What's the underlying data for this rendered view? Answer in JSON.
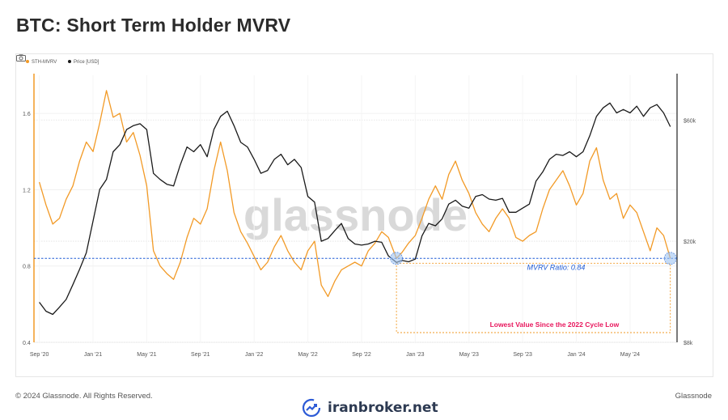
{
  "page": {
    "title": "BTC: Short Term Holder MVRV",
    "footer_left": "© 2024 Glassnode. All Rights Reserved.",
    "footer_right": "Glassnode",
    "watermark": "glassnode",
    "brand_text": "iranbroker.net"
  },
  "chart_data": {
    "type": "line",
    "title": "BTC: Short Term Holder MVRV",
    "legend_position": "top-left",
    "grid": true,
    "x_ticks": [
      "Sep '20",
      "Jan '21",
      "May '21",
      "Sep '21",
      "Jan '22",
      "May '22",
      "Sep '22",
      "Jan '23",
      "May '23",
      "Sep '23",
      "Jan '24",
      "May '24"
    ],
    "x_tick_months": [
      0,
      4,
      8,
      12,
      16,
      20,
      24,
      28,
      32,
      36,
      40,
      44
    ],
    "x_range_months": [
      -0.4,
      47.5
    ],
    "y_left": {
      "ticks": [
        "0.4",
        "0.8",
        "1.2",
        "1.6"
      ],
      "tick_values": [
        0.4,
        0.8,
        1.2,
        1.6
      ],
      "range": [
        0.4,
        1.8
      ]
    },
    "y_right": {
      "ticks": [
        "$8k",
        "$20k",
        "$60k"
      ],
      "tick_values": [
        8000,
        20000,
        60000
      ],
      "scale": "log",
      "range": [
        8000,
        90000
      ]
    },
    "reference_line": {
      "value": 0.84,
      "label": "MVRV Ratio: 0.84",
      "color": "#1f5bd6"
    },
    "annotation": {
      "text": "Lowest Value Since the 2022 Cycle Low",
      "color": "#e8175d"
    },
    "highlight_points": [
      {
        "month": 26.6,
        "value": 0.84
      },
      {
        "month": 47.0,
        "value": 0.84
      }
    ],
    "series": [
      {
        "name": "STH-MVRV",
        "axis": "left",
        "color": "#f29a26",
        "points": [
          [
            0,
            1.24
          ],
          [
            0.5,
            1.12
          ],
          [
            1,
            1.02
          ],
          [
            1.5,
            1.05
          ],
          [
            2,
            1.15
          ],
          [
            2.5,
            1.22
          ],
          [
            3,
            1.35
          ],
          [
            3.5,
            1.45
          ],
          [
            4,
            1.4
          ],
          [
            4.5,
            1.55
          ],
          [
            5,
            1.72
          ],
          [
            5.5,
            1.58
          ],
          [
            6,
            1.6
          ],
          [
            6.5,
            1.45
          ],
          [
            7,
            1.5
          ],
          [
            7.5,
            1.38
          ],
          [
            8,
            1.22
          ],
          [
            8.5,
            0.88
          ],
          [
            9,
            0.8
          ],
          [
            9.5,
            0.76
          ],
          [
            10,
            0.73
          ],
          [
            10.5,
            0.82
          ],
          [
            11,
            0.95
          ],
          [
            11.5,
            1.05
          ],
          [
            12,
            1.02
          ],
          [
            12.5,
            1.1
          ],
          [
            13,
            1.3
          ],
          [
            13.5,
            1.45
          ],
          [
            14,
            1.3
          ],
          [
            14.5,
            1.08
          ],
          [
            15,
            0.98
          ],
          [
            15.5,
            0.92
          ],
          [
            16,
            0.85
          ],
          [
            16.5,
            0.78
          ],
          [
            17,
            0.82
          ],
          [
            17.5,
            0.9
          ],
          [
            18,
            0.96
          ],
          [
            18.5,
            0.88
          ],
          [
            19,
            0.82
          ],
          [
            19.5,
            0.78
          ],
          [
            20,
            0.88
          ],
          [
            20.5,
            0.93
          ],
          [
            21,
            0.7
          ],
          [
            21.5,
            0.64
          ],
          [
            22,
            0.72
          ],
          [
            22.5,
            0.78
          ],
          [
            23,
            0.8
          ],
          [
            23.5,
            0.82
          ],
          [
            24,
            0.8
          ],
          [
            24.5,
            0.88
          ],
          [
            25,
            0.92
          ],
          [
            25.5,
            0.98
          ],
          [
            26,
            0.95
          ],
          [
            26.6,
            0.84
          ],
          [
            27,
            0.87
          ],
          [
            27.5,
            0.92
          ],
          [
            28,
            0.96
          ],
          [
            28.5,
            1.05
          ],
          [
            29,
            1.15
          ],
          [
            29.5,
            1.22
          ],
          [
            30,
            1.15
          ],
          [
            30.5,
            1.28
          ],
          [
            31,
            1.35
          ],
          [
            31.5,
            1.25
          ],
          [
            32,
            1.18
          ],
          [
            32.5,
            1.08
          ],
          [
            33,
            1.02
          ],
          [
            33.5,
            0.98
          ],
          [
            34,
            1.05
          ],
          [
            34.5,
            1.1
          ],
          [
            35,
            1.05
          ],
          [
            35.5,
            0.95
          ],
          [
            36,
            0.93
          ],
          [
            36.5,
            0.96
          ],
          [
            37,
            0.98
          ],
          [
            37.5,
            1.1
          ],
          [
            38,
            1.2
          ],
          [
            38.5,
            1.25
          ],
          [
            39,
            1.3
          ],
          [
            39.5,
            1.22
          ],
          [
            40,
            1.12
          ],
          [
            40.5,
            1.18
          ],
          [
            41,
            1.35
          ],
          [
            41.5,
            1.42
          ],
          [
            42,
            1.25
          ],
          [
            42.5,
            1.15
          ],
          [
            43,
            1.18
          ],
          [
            43.5,
            1.05
          ],
          [
            44,
            1.12
          ],
          [
            44.5,
            1.08
          ],
          [
            45,
            0.98
          ],
          [
            45.5,
            0.88
          ],
          [
            46,
            1.0
          ],
          [
            46.5,
            0.96
          ],
          [
            47,
            0.84
          ]
        ]
      },
      {
        "name": "Price [USD]",
        "axis": "right",
        "color": "#1a1a1a",
        "points": [
          [
            0,
            11500
          ],
          [
            0.5,
            10600
          ],
          [
            1,
            10300
          ],
          [
            1.5,
            11000
          ],
          [
            2,
            11800
          ],
          [
            2.5,
            13500
          ],
          [
            3,
            15500
          ],
          [
            3.5,
            18000
          ],
          [
            4,
            24000
          ],
          [
            4.5,
            32000
          ],
          [
            5,
            35000
          ],
          [
            5.5,
            45000
          ],
          [
            6,
            48000
          ],
          [
            6.5,
            55000
          ],
          [
            7,
            57000
          ],
          [
            7.5,
            58000
          ],
          [
            8,
            55000
          ],
          [
            8.5,
            37000
          ],
          [
            9,
            35000
          ],
          [
            9.5,
            33500
          ],
          [
            10,
            33000
          ],
          [
            10.5,
            40000
          ],
          [
            11,
            47000
          ],
          [
            11.5,
            45000
          ],
          [
            12,
            48000
          ],
          [
            12.5,
            43000
          ],
          [
            13,
            55000
          ],
          [
            13.5,
            62000
          ],
          [
            14,
            65000
          ],
          [
            14.5,
            57000
          ],
          [
            15,
            49000
          ],
          [
            15.5,
            47000
          ],
          [
            16,
            42000
          ],
          [
            16.5,
            37000
          ],
          [
            17,
            38000
          ],
          [
            17.5,
            42000
          ],
          [
            18,
            44000
          ],
          [
            18.5,
            40000
          ],
          [
            19,
            42000
          ],
          [
            19.5,
            39000
          ],
          [
            20,
            30000
          ],
          [
            20.5,
            28500
          ],
          [
            21,
            20000
          ],
          [
            21.5,
            20500
          ],
          [
            22,
            22000
          ],
          [
            22.5,
            23500
          ],
          [
            23,
            20500
          ],
          [
            23.5,
            19500
          ],
          [
            24,
            19300
          ],
          [
            24.5,
            19500
          ],
          [
            25,
            20000
          ],
          [
            25.5,
            19800
          ],
          [
            26,
            17500
          ],
          [
            26.6,
            16500
          ],
          [
            27,
            16800
          ],
          [
            27.5,
            16600
          ],
          [
            28,
            17000
          ],
          [
            28.5,
            21000
          ],
          [
            29,
            23500
          ],
          [
            29.5,
            23000
          ],
          [
            30,
            24500
          ],
          [
            30.5,
            28000
          ],
          [
            31,
            29000
          ],
          [
            31.5,
            27500
          ],
          [
            32,
            27000
          ],
          [
            32.5,
            30000
          ],
          [
            33,
            30500
          ],
          [
            33.5,
            29300
          ],
          [
            34,
            29000
          ],
          [
            34.5,
            29500
          ],
          [
            35,
            26000
          ],
          [
            35.5,
            26000
          ],
          [
            36,
            27000
          ],
          [
            36.5,
            28000
          ],
          [
            37,
            34500
          ],
          [
            37.5,
            37500
          ],
          [
            38,
            42000
          ],
          [
            38.5,
            44000
          ],
          [
            39,
            43500
          ],
          [
            39.5,
            45000
          ],
          [
            40,
            43000
          ],
          [
            40.5,
            45000
          ],
          [
            41,
            52000
          ],
          [
            41.5,
            62000
          ],
          [
            42,
            67000
          ],
          [
            42.5,
            70000
          ],
          [
            43,
            64000
          ],
          [
            43.5,
            66000
          ],
          [
            44,
            64000
          ],
          [
            44.5,
            68000
          ],
          [
            45,
            62000
          ],
          [
            45.5,
            67000
          ],
          [
            46,
            69000
          ],
          [
            46.5,
            64000
          ],
          [
            47,
            56500
          ]
        ]
      }
    ]
  }
}
